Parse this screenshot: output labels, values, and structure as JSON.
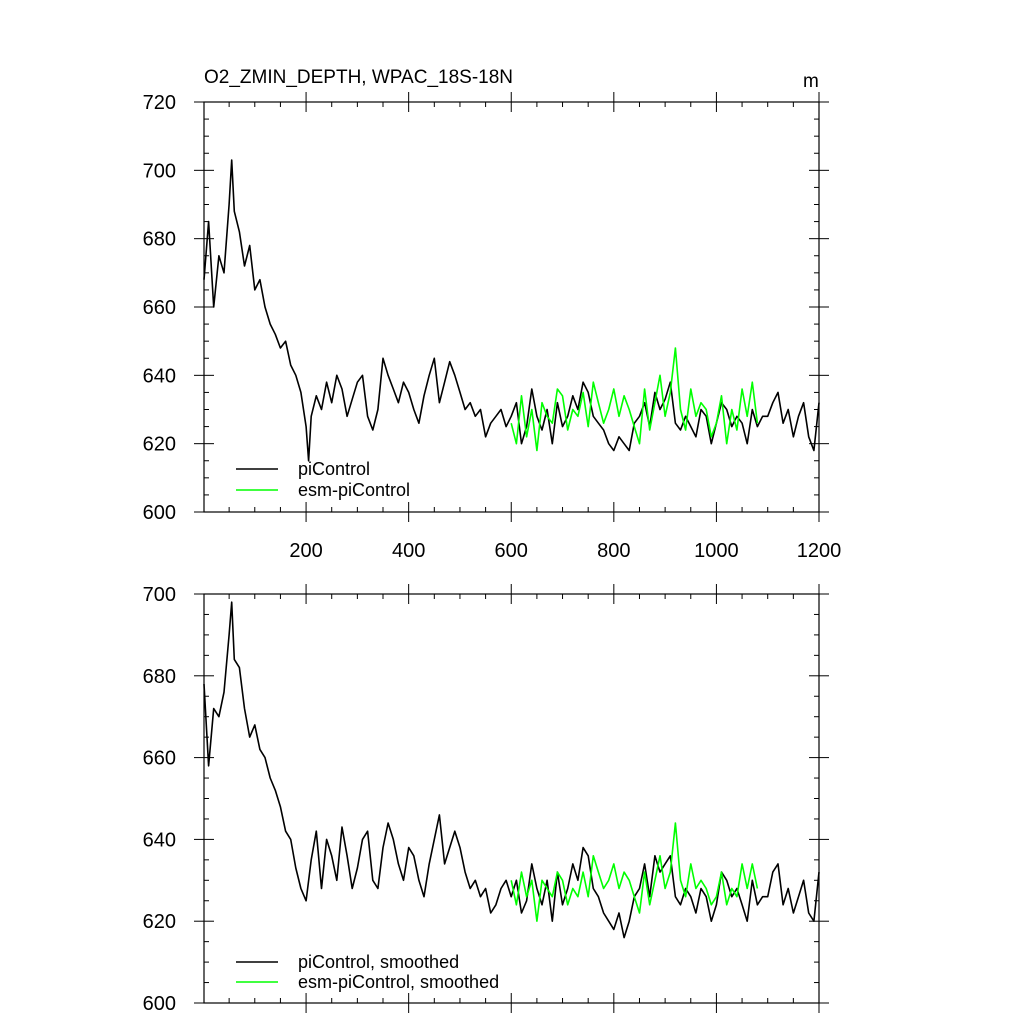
{
  "colors": {
    "piControl": "#000000",
    "esm_piControl": "#00ff00",
    "frame": "#000000"
  },
  "chart_data": [
    {
      "type": "line",
      "title": "O2_ZMIN_DEPTH, WPAC_18S-18N",
      "units": "m",
      "xlim": [
        1,
        1200
      ],
      "ylim": [
        600,
        720
      ],
      "xticks": [
        200,
        400,
        600,
        800,
        1000,
        1200
      ],
      "yticks": [
        600,
        620,
        640,
        660,
        680,
        700,
        720
      ],
      "legend_placement": "bottom-left",
      "series": [
        {
          "name": "piControl",
          "color_key": "piControl",
          "x": [
            1,
            10,
            20,
            30,
            40,
            50,
            55,
            60,
            70,
            80,
            90,
            100,
            110,
            120,
            130,
            140,
            150,
            160,
            170,
            180,
            190,
            200,
            205,
            210,
            220,
            230,
            240,
            250,
            260,
            270,
            280,
            290,
            300,
            310,
            320,
            330,
            340,
            350,
            360,
            370,
            380,
            390,
            400,
            410,
            420,
            430,
            440,
            450,
            460,
            470,
            480,
            490,
            500,
            510,
            520,
            530,
            540,
            550,
            560,
            570,
            580,
            590,
            600,
            610,
            620,
            630,
            640,
            650,
            660,
            670,
            680,
            690,
            700,
            710,
            720,
            730,
            740,
            750,
            760,
            770,
            780,
            790,
            800,
            810,
            820,
            830,
            840,
            850,
            860,
            870,
            880,
            890,
            900,
            910,
            920,
            930,
            940,
            950,
            960,
            970,
            980,
            990,
            1000,
            1010,
            1020,
            1030,
            1040,
            1050,
            1060,
            1070,
            1080,
            1090,
            1100,
            1110,
            1120,
            1130,
            1140,
            1150,
            1160,
            1170,
            1180,
            1190,
            1200
          ],
          "y": [
            668,
            685,
            660,
            675,
            670,
            690,
            703,
            688,
            682,
            672,
            678,
            665,
            668,
            660,
            655,
            652,
            648,
            650,
            643,
            640,
            635,
            625,
            615,
            628,
            634,
            630,
            638,
            632,
            640,
            636,
            628,
            633,
            638,
            640,
            628,
            624,
            630,
            645,
            640,
            636,
            632,
            638,
            635,
            630,
            626,
            634,
            640,
            645,
            632,
            638,
            644,
            640,
            635,
            630,
            632,
            628,
            630,
            622,
            626,
            628,
            630,
            625,
            628,
            632,
            620,
            625,
            636,
            628,
            624,
            630,
            620,
            632,
            625,
            628,
            634,
            630,
            638,
            635,
            628,
            626,
            624,
            620,
            618,
            622,
            620,
            618,
            626,
            628,
            632,
            625,
            635,
            630,
            633,
            638,
            626,
            624,
            628,
            625,
            622,
            630,
            628,
            620,
            626,
            632,
            630,
            625,
            628,
            626,
            620,
            630,
            625,
            628,
            628,
            632,
            635,
            626,
            630,
            622,
            628,
            632,
            622,
            618,
            632
          ]
        },
        {
          "name": "esm-piControl",
          "color_key": "esm_piControl",
          "x": [
            600,
            610,
            620,
            630,
            640,
            650,
            660,
            670,
            680,
            690,
            700,
            710,
            720,
            730,
            740,
            750,
            760,
            770,
            780,
            790,
            800,
            810,
            820,
            830,
            840,
            850,
            860,
            870,
            880,
            890,
            900,
            910,
            920,
            930,
            940,
            950,
            960,
            970,
            980,
            990,
            1000,
            1010,
            1020,
            1030,
            1040,
            1050,
            1060,
            1070,
            1080
          ],
          "y": [
            626,
            620,
            634,
            622,
            630,
            618,
            632,
            628,
            626,
            636,
            634,
            624,
            630,
            628,
            635,
            625,
            638,
            632,
            626,
            630,
            636,
            628,
            634,
            630,
            625,
            620,
            636,
            624,
            632,
            640,
            628,
            635,
            648,
            630,
            624,
            636,
            628,
            632,
            630,
            622,
            626,
            634,
            620,
            630,
            624,
            636,
            628,
            638,
            626
          ]
        }
      ]
    },
    {
      "type": "line",
      "title": "",
      "xlim": [
        1,
        1200
      ],
      "ylim": [
        600,
        700
      ],
      "yticks": [
        600,
        620,
        640,
        660,
        680,
        700
      ],
      "legend_placement": "bottom-left",
      "series": [
        {
          "name": "piControl, smoothed",
          "color_key": "piControl",
          "x": [
            1,
            10,
            20,
            30,
            40,
            50,
            55,
            60,
            70,
            80,
            90,
            100,
            110,
            120,
            130,
            140,
            150,
            160,
            170,
            180,
            190,
            200,
            210,
            220,
            230,
            240,
            250,
            260,
            270,
            280,
            290,
            300,
            310,
            320,
            330,
            340,
            350,
            360,
            370,
            380,
            390,
            400,
            410,
            420,
            430,
            440,
            450,
            460,
            470,
            480,
            490,
            500,
            510,
            520,
            530,
            540,
            550,
            560,
            570,
            580,
            590,
            600,
            610,
            620,
            630,
            640,
            650,
            660,
            670,
            680,
            690,
            700,
            710,
            720,
            730,
            740,
            750,
            760,
            770,
            780,
            790,
            800,
            810,
            820,
            830,
            840,
            850,
            860,
            870,
            880,
            890,
            900,
            910,
            920,
            930,
            940,
            950,
            960,
            970,
            980,
            990,
            1000,
            1010,
            1020,
            1030,
            1040,
            1050,
            1060,
            1070,
            1080,
            1090,
            1100,
            1110,
            1120,
            1130,
            1140,
            1150,
            1160,
            1170,
            1180,
            1190,
            1200
          ],
          "y": [
            678,
            658,
            672,
            670,
            676,
            690,
            698,
            684,
            682,
            672,
            665,
            668,
            662,
            660,
            655,
            652,
            648,
            642,
            640,
            633,
            628,
            625,
            635,
            642,
            628,
            640,
            636,
            630,
            643,
            636,
            628,
            633,
            640,
            642,
            630,
            628,
            638,
            644,
            640,
            634,
            630,
            638,
            636,
            630,
            626,
            634,
            640,
            646,
            634,
            638,
            642,
            638,
            632,
            628,
            630,
            626,
            628,
            622,
            624,
            628,
            630,
            626,
            630,
            622,
            625,
            634,
            628,
            624,
            630,
            620,
            632,
            624,
            628,
            634,
            630,
            638,
            636,
            628,
            626,
            622,
            620,
            618,
            622,
            616,
            620,
            626,
            628,
            634,
            626,
            636,
            632,
            634,
            636,
            626,
            624,
            628,
            626,
            622,
            628,
            626,
            620,
            624,
            632,
            630,
            626,
            628,
            624,
            620,
            630,
            624,
            626,
            626,
            632,
            634,
            624,
            628,
            622,
            626,
            630,
            622,
            620,
            632
          ]
        },
        {
          "name": "esm-piControl, smoothed",
          "color_key": "esm_piControl",
          "x": [
            600,
            610,
            620,
            630,
            640,
            650,
            660,
            670,
            680,
            690,
            700,
            710,
            720,
            730,
            740,
            750,
            760,
            770,
            780,
            790,
            800,
            810,
            820,
            830,
            840,
            850,
            860,
            870,
            880,
            890,
            900,
            910,
            920,
            930,
            940,
            950,
            960,
            970,
            980,
            990,
            1000,
            1010,
            1020,
            1030,
            1040,
            1050,
            1060,
            1070,
            1080
          ],
          "y": [
            630,
            624,
            632,
            626,
            630,
            620,
            630,
            628,
            626,
            632,
            630,
            624,
            628,
            626,
            632,
            626,
            636,
            632,
            628,
            630,
            634,
            628,
            632,
            630,
            626,
            622,
            632,
            624,
            630,
            636,
            628,
            632,
            644,
            630,
            626,
            634,
            628,
            630,
            628,
            624,
            626,
            632,
            624,
            628,
            626,
            634,
            628,
            634,
            628
          ]
        }
      ]
    }
  ]
}
